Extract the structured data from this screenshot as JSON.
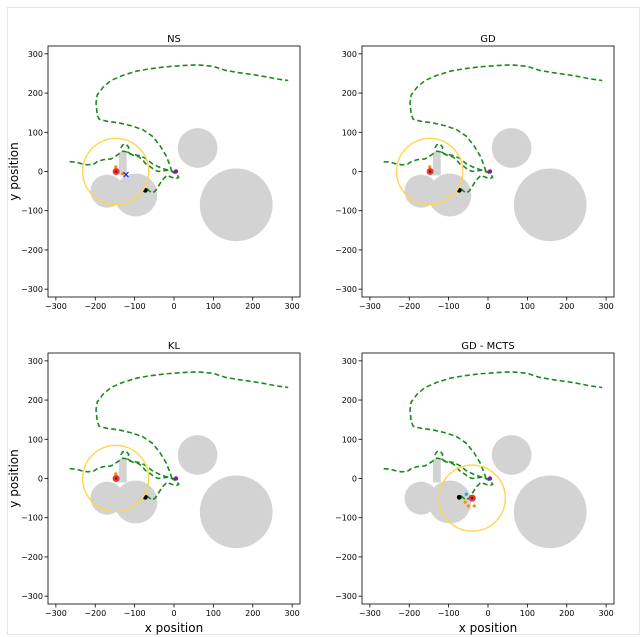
{
  "chart_data": [
    {
      "type": "scatter",
      "title": "NS",
      "xlabel": "",
      "ylabel": "y position",
      "xlim": [
        -320,
        320
      ],
      "ylim": [
        -320,
        320
      ],
      "xticks": [
        -300,
        -200,
        -100,
        0,
        100,
        200,
        300
      ],
      "yticks": [
        -300,
        -200,
        -100,
        0,
        100,
        200,
        300
      ],
      "obstacles": [
        {
          "shape": "circle",
          "x": 60,
          "y": 60,
          "r": 12
        },
        {
          "shape": "circle",
          "x": -170,
          "y": -50,
          "r": 10
        },
        {
          "shape": "circle",
          "x": -97,
          "y": -60,
          "r": 13
        },
        {
          "shape": "circle",
          "x": 158,
          "y": -85,
          "r": 22
        },
        {
          "shape": "rect",
          "x0": -140,
          "x1": -120,
          "y0": -10,
          "y1": 50
        }
      ],
      "goal_region": {
        "x": -148,
        "y": 0,
        "r": 20
      },
      "agent": {
        "x": -147,
        "y": 0
      },
      "start": {
        "x": -73,
        "y": -48
      },
      "waypoint": {
        "x": 0,
        "y": 0
      },
      "candidate_markers": [
        {
          "x": -148,
          "y": 12,
          "color": "#ff8c00"
        },
        {
          "x": -130,
          "y": -6,
          "color": "#ff8c00"
        },
        {
          "x": -122,
          "y": -8,
          "color": "#1a1aff"
        }
      ]
    },
    {
      "type": "scatter",
      "title": "GD",
      "xlabel": "",
      "ylabel": "",
      "xlim": [
        -320,
        320
      ],
      "ylim": [
        -320,
        320
      ],
      "xticks": [
        -300,
        -200,
        -100,
        0,
        100,
        200,
        300
      ],
      "yticks": [
        -300,
        -200,
        -100,
        0,
        100,
        200,
        300
      ],
      "obstacles": [
        {
          "shape": "circle",
          "x": 60,
          "y": 60,
          "r": 12
        },
        {
          "shape": "circle",
          "x": -170,
          "y": -50,
          "r": 10
        },
        {
          "shape": "circle",
          "x": -97,
          "y": -60,
          "r": 13
        },
        {
          "shape": "circle",
          "x": 158,
          "y": -85,
          "r": 22
        },
        {
          "shape": "rect",
          "x0": -140,
          "x1": -120,
          "y0": -10,
          "y1": 50
        }
      ],
      "goal_region": {
        "x": -148,
        "y": 0,
        "r": 20
      },
      "agent": {
        "x": -147,
        "y": 0
      },
      "start": {
        "x": -73,
        "y": -48
      },
      "waypoint": {
        "x": 0,
        "y": 0
      },
      "candidate_markers": [
        {
          "x": -148,
          "y": 12,
          "color": "#ff8c00"
        }
      ]
    },
    {
      "type": "scatter",
      "title": "KL",
      "xlabel": "x position",
      "ylabel": "y position",
      "xlim": [
        -320,
        320
      ],
      "ylim": [
        -320,
        320
      ],
      "xticks": [
        -300,
        -200,
        -100,
        0,
        100,
        200,
        300
      ],
      "yticks": [
        -300,
        -200,
        -100,
        0,
        100,
        200,
        300
      ],
      "obstacles": [
        {
          "shape": "circle",
          "x": 60,
          "y": 60,
          "r": 12
        },
        {
          "shape": "circle",
          "x": -170,
          "y": -50,
          "r": 10
        },
        {
          "shape": "circle",
          "x": -97,
          "y": -60,
          "r": 13
        },
        {
          "shape": "circle",
          "x": 158,
          "y": -85,
          "r": 22
        },
        {
          "shape": "rect",
          "x0": -140,
          "x1": -120,
          "y0": -10,
          "y1": 50
        }
      ],
      "goal_region": {
        "x": -148,
        "y": 0,
        "r": 20
      },
      "agent": {
        "x": -147,
        "y": 0
      },
      "start": {
        "x": -73,
        "y": -48
      },
      "waypoint": {
        "x": 0,
        "y": 0
      },
      "candidate_markers": [
        {
          "x": -148,
          "y": 12,
          "color": "#ff8c00"
        }
      ]
    },
    {
      "type": "scatter",
      "title": "GD - MCTS",
      "xlabel": "x position",
      "ylabel": "",
      "xlim": [
        -320,
        320
      ],
      "ylim": [
        -320,
        320
      ],
      "xticks": [
        -300,
        -200,
        -100,
        0,
        100,
        200,
        300
      ],
      "yticks": [
        -300,
        -200,
        -100,
        0,
        100,
        200,
        300
      ],
      "obstacles": [
        {
          "shape": "circle",
          "x": 60,
          "y": 60,
          "r": 12
        },
        {
          "shape": "circle",
          "x": -170,
          "y": -50,
          "r": 10
        },
        {
          "shape": "circle",
          "x": -97,
          "y": -60,
          "r": 13
        },
        {
          "shape": "circle",
          "x": 158,
          "y": -85,
          "r": 22
        },
        {
          "shape": "rect",
          "x0": -140,
          "x1": -120,
          "y0": -10,
          "y1": 50
        }
      ],
      "goal_region": {
        "x": -40,
        "y": -50,
        "r": 20
      },
      "agent": {
        "x": -40,
        "y": -50
      },
      "start": {
        "x": -73,
        "y": -48
      },
      "waypoint": {
        "x": 0,
        "y": 0
      },
      "candidate_markers": [
        {
          "x": -55,
          "y": -40,
          "color": "#00bcd4"
        },
        {
          "x": -50,
          "y": -70,
          "color": "#ff8c00"
        },
        {
          "x": -35,
          "y": -70,
          "color": "#ff8c00"
        },
        {
          "x": -58,
          "y": -60,
          "color": "#ff8c00"
        }
      ]
    }
  ],
  "trajectory": {
    "color": "#1a8a1a",
    "points": [
      [
        -265,
        25
      ],
      [
        -250,
        24
      ],
      [
        -235,
        20
      ],
      [
        -220,
        17
      ],
      [
        -205,
        18
      ],
      [
        -195,
        25
      ],
      [
        -180,
        30
      ],
      [
        -160,
        32
      ],
      [
        -150,
        38
      ],
      [
        -140,
        45
      ],
      [
        -130,
        52
      ],
      [
        -120,
        50
      ],
      [
        -110,
        44
      ],
      [
        -100,
        40
      ],
      [
        -90,
        38
      ],
      [
        -80,
        30
      ],
      [
        -72,
        20
      ],
      [
        -60,
        12
      ],
      [
        -50,
        4
      ],
      [
        -40,
        0
      ],
      [
        -25,
        2
      ],
      [
        -12,
        4
      ],
      [
        -2,
        -2
      ],
      [
        8,
        -8
      ],
      [
        12,
        -15
      ],
      [
        5,
        -18
      ],
      [
        -5,
        -15
      ],
      [
        -18,
        -10
      ],
      [
        -30,
        -22
      ],
      [
        -40,
        -38
      ],
      [
        -48,
        -50
      ],
      [
        -55,
        -55
      ],
      [
        -62,
        -50
      ],
      [
        -68,
        -45
      ],
      [
        -73,
        -48
      ]
    ],
    "points_upper": [
      [
        -135,
        60
      ],
      [
        -130,
        68
      ],
      [
        -122,
        70
      ],
      [
        -115,
        62
      ],
      [
        -118,
        50
      ],
      [
        -110,
        45
      ],
      [
        -85,
        40
      ],
      [
        -70,
        32
      ],
      [
        -55,
        20
      ],
      [
        -35,
        10
      ],
      [
        -18,
        4
      ],
      [
        -5,
        0
      ],
      [
        5,
        0
      ]
    ],
    "points_big_loop": [
      [
        -5,
        0
      ],
      [
        -12,
        20
      ],
      [
        -20,
        40
      ],
      [
        -35,
        65
      ],
      [
        -55,
        90
      ],
      [
        -80,
        107
      ],
      [
        -110,
        117
      ],
      [
        -140,
        124
      ],
      [
        -170,
        128
      ],
      [
        -190,
        133
      ],
      [
        -195,
        145
      ],
      [
        -198,
        175
      ],
      [
        -195,
        195
      ],
      [
        -180,
        215
      ],
      [
        -160,
        232
      ],
      [
        -130,
        245
      ],
      [
        -95,
        256
      ],
      [
        -60,
        262
      ],
      [
        -20,
        267
      ],
      [
        20,
        270
      ],
      [
        60,
        272
      ],
      [
        100,
        268
      ],
      [
        130,
        258
      ],
      [
        165,
        252
      ],
      [
        200,
        247
      ],
      [
        230,
        242
      ],
      [
        260,
        236
      ],
      [
        290,
        232
      ]
    ]
  }
}
